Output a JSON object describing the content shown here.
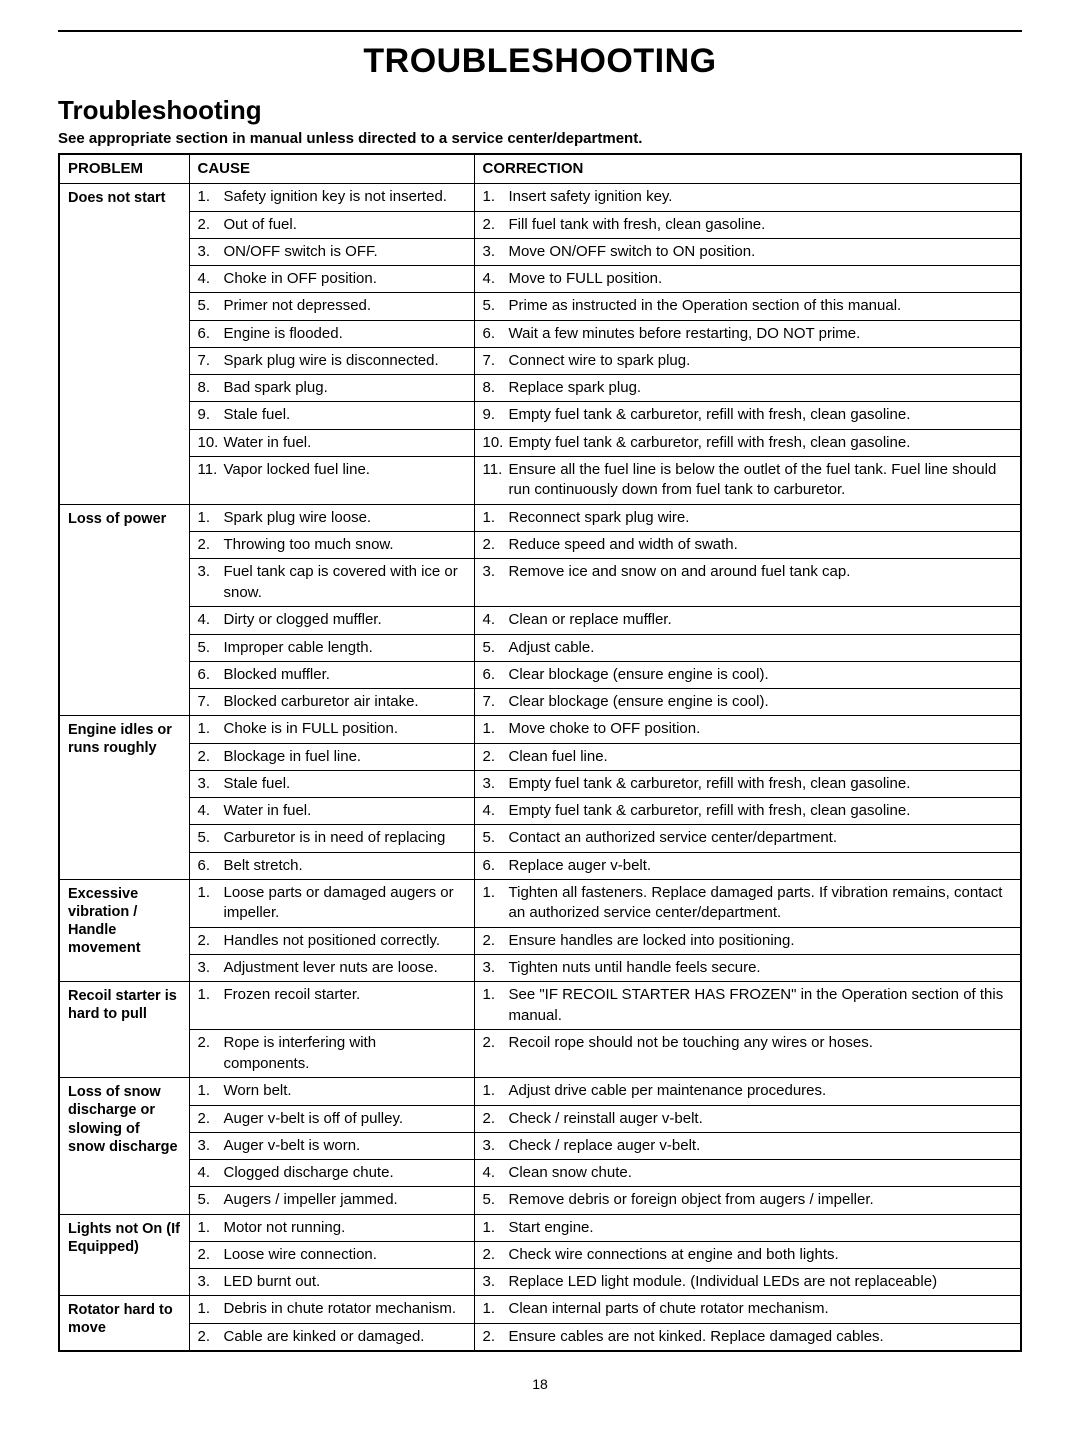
{
  "page": {
    "main_title": "TROUBLESHOOTING",
    "sub_title": "Troubleshooting",
    "note": "See appropriate section in manual unless directed to a service center/department.",
    "page_number": "18"
  },
  "headers": {
    "problem": "PROBLEM",
    "cause": "CAUSE",
    "correction": "CORRECTION"
  },
  "rows": [
    {
      "problem": "Does not start",
      "causes": [
        "Safety ignition key is not inserted.",
        "Out of fuel.",
        "ON/OFF switch is OFF.",
        "Choke in OFF position.",
        "Primer not depressed.",
        "Engine is flooded.",
        "Spark plug wire is disconnected.",
        "Bad spark plug.",
        "Stale fuel.",
        "Water in fuel.",
        "Vapor locked fuel line."
      ],
      "corrections": [
        "Insert safety ignition key.",
        "Fill fuel tank with fresh, clean gasoline.",
        "Move ON/OFF switch to ON position.",
        "Move to FULL position.",
        "Prime as instructed in the Operation section of this manual.",
        "Wait a few minutes before restarting, DO NOT prime.",
        "Connect wire to spark plug.",
        "Replace spark plug.",
        "Empty fuel tank & carburetor, refill with fresh, clean gasoline.",
        "Empty fuel tank & carburetor, refill with fresh, clean gasoline.",
        "Ensure all the fuel line is below the outlet of the fuel tank. Fuel line should run continuously down from fuel tank to carburetor."
      ]
    },
    {
      "problem": "Loss of power",
      "causes": [
        "Spark plug wire loose.",
        "Throwing too much snow.",
        "Fuel tank cap is covered with ice or snow.",
        "Dirty or clogged muffler.",
        "Improper cable length.",
        "Blocked muffler.",
        "Blocked carburetor air intake."
      ],
      "corrections": [
        "Reconnect spark plug wire.",
        "Reduce speed and width of swath.",
        "Remove ice and snow on and around fuel tank cap.",
        "Clean or replace muffler.",
        "Adjust cable.",
        "Clear blockage (ensure engine is cool).",
        "Clear blockage (ensure engine is cool)."
      ]
    },
    {
      "problem": "Engine idles or runs roughly",
      "causes": [
        "Choke is in FULL position.",
        "Blockage in fuel line.",
        "Stale fuel.",
        "Water in fuel.",
        "Carburetor is in need of replacing",
        "Belt stretch."
      ],
      "corrections": [
        "Move choke to OFF position.",
        "Clean fuel line.",
        "Empty fuel tank & carburetor, refill with fresh, clean gasoline.",
        "Empty fuel tank & carburetor, refill with fresh, clean gasoline.",
        "Contact an authorized service center/department.",
        "Replace auger v-belt."
      ]
    },
    {
      "problem": "Excessive vibration / Handle movement",
      "causes": [
        "Loose parts or damaged augers or impeller.",
        "Handles not positioned correctly.",
        "Adjustment lever nuts are loose."
      ],
      "corrections": [
        "Tighten all fasteners.  Replace damaged parts.  If vibration remains, contact an authorized service center/department.",
        "Ensure handles are locked into positioning.",
        "Tighten nuts until handle feels secure."
      ]
    },
    {
      "problem": "Recoil starter is hard to pull",
      "causes": [
        "Frozen recoil starter.",
        "Rope is interfering with components."
      ],
      "corrections": [
        "See \"IF RECOIL STARTER HAS FROZEN\" in the Operation section of this manual.",
        "Recoil rope should not be touching any wires or hoses."
      ]
    },
    {
      "problem": "Loss of snow discharge or slowing of snow discharge",
      "causes": [
        "Worn belt.",
        "Auger v-belt is off of pulley.",
        "Auger v-belt is worn.",
        "Clogged discharge chute.",
        "Augers / impeller jammed."
      ],
      "corrections": [
        "Adjust drive cable per maintenance procedures.",
        "Check / reinstall auger v-belt.",
        "Check / replace auger v-belt.",
        "Clean snow chute.",
        "Remove debris or foreign object from augers / impeller."
      ]
    },
    {
      "problem": "Lights not On (If Equipped)",
      "causes": [
        "Motor not running.",
        "Loose wire connection.",
        "LED burnt out."
      ],
      "corrections": [
        "Start engine.",
        "Check wire connections at engine and both lights.",
        "Replace LED light module. (Individual LEDs are not replaceable)"
      ]
    },
    {
      "problem": "Rotator hard to move",
      "causes": [
        "Debris in chute rotator mechanism.",
        "Cable are kinked or damaged."
      ],
      "corrections": [
        "Clean internal parts of chute rotator mechanism.",
        "Ensure cables are not kinked.  Replace damaged cables."
      ]
    }
  ]
}
